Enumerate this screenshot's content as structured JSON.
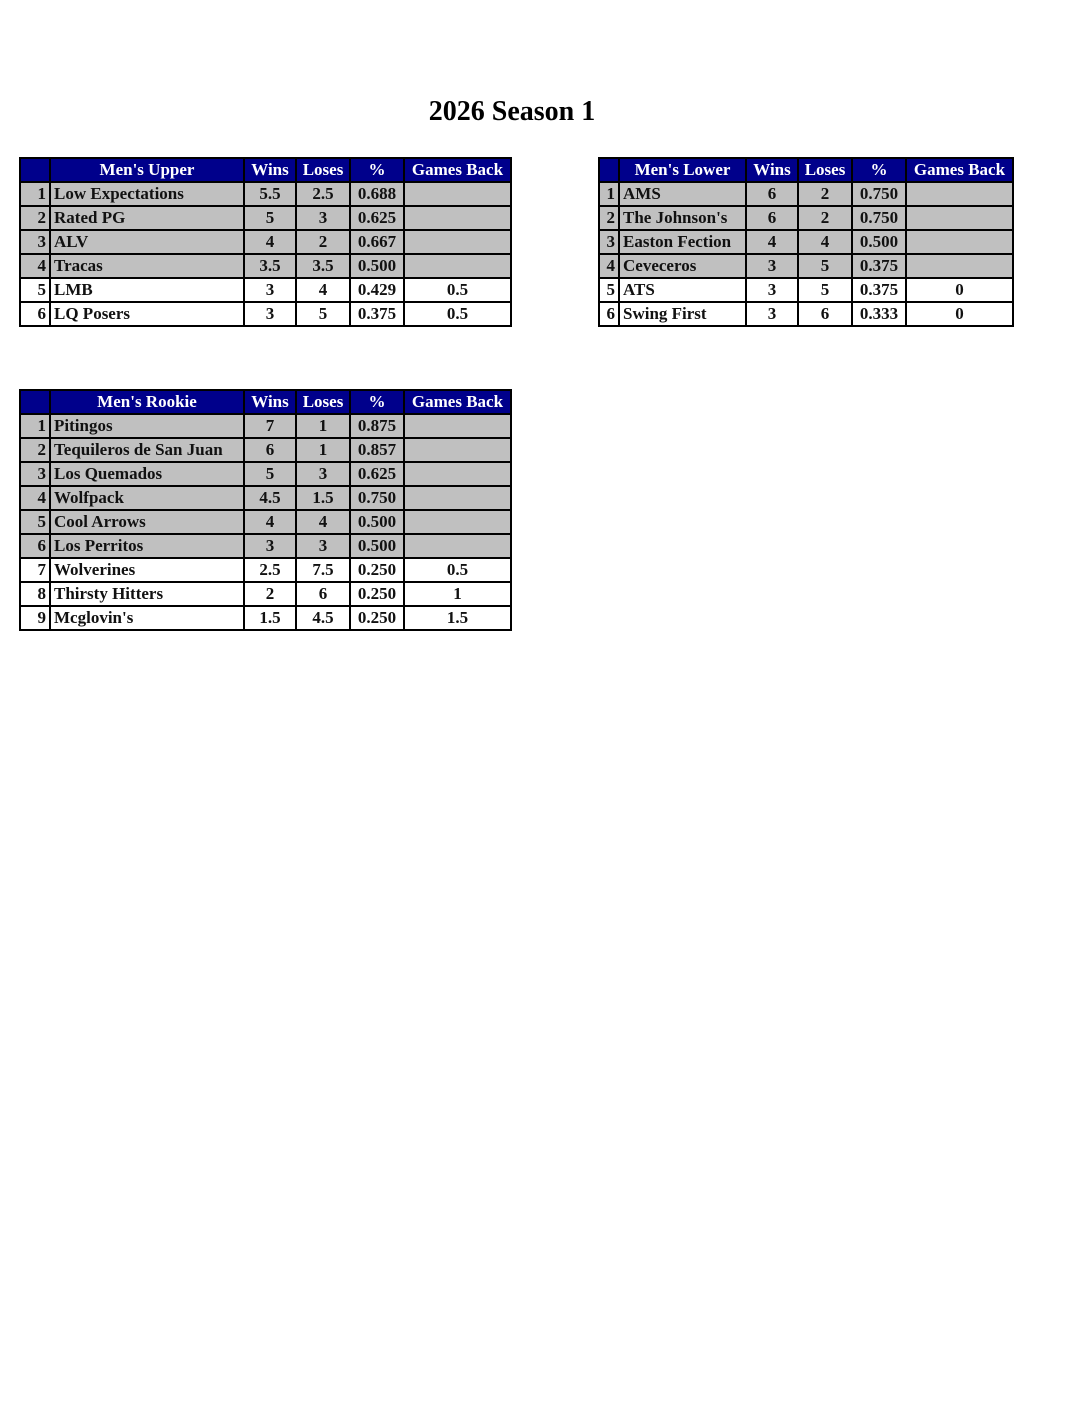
{
  "title": "2026 Season 1",
  "columns": [
    "Wins",
    "Loses",
    "%",
    "Games Back"
  ],
  "colors": {
    "header_bg": "#00008b",
    "header_text": "#ffffff",
    "highlight_row": "#c0c0c0"
  },
  "tables": [
    {
      "id": "upper",
      "division": "Men's Upper",
      "rows": [
        {
          "rank": "1",
          "team": "Low Expectations",
          "wins": "5.5",
          "loses": "2.5",
          "pct": "0.688",
          "gb": "",
          "highlighted": true
        },
        {
          "rank": "2",
          "team": "Rated PG",
          "wins": "5",
          "loses": "3",
          "pct": "0.625",
          "gb": "",
          "highlighted": true
        },
        {
          "rank": "3",
          "team": "ALV",
          "wins": "4",
          "loses": "2",
          "pct": "0.667",
          "gb": "",
          "highlighted": true
        },
        {
          "rank": "4",
          "team": "Tracas",
          "wins": "3.5",
          "loses": "3.5",
          "pct": "0.500",
          "gb": "",
          "highlighted": true
        },
        {
          "rank": "5",
          "team": "LMB",
          "wins": "3",
          "loses": "4",
          "pct": "0.429",
          "gb": "0.5",
          "highlighted": false
        },
        {
          "rank": "6",
          "team": "LQ Posers",
          "wins": "3",
          "loses": "5",
          "pct": "0.375",
          "gb": "0.5",
          "highlighted": false
        }
      ]
    },
    {
      "id": "lower",
      "division": "Men's Lower",
      "rows": [
        {
          "rank": "1",
          "team": "AMS",
          "wins": "6",
          "loses": "2",
          "pct": "0.750",
          "gb": "",
          "highlighted": true
        },
        {
          "rank": "2",
          "team": "The Johnson's",
          "wins": "6",
          "loses": "2",
          "pct": "0.750",
          "gb": "",
          "highlighted": true
        },
        {
          "rank": "3",
          "team": "Easton Fection",
          "wins": "4",
          "loses": "4",
          "pct": "0.500",
          "gb": "",
          "highlighted": true
        },
        {
          "rank": "4",
          "team": "Ceveceros",
          "wins": "3",
          "loses": "5",
          "pct": "0.375",
          "gb": "",
          "highlighted": true
        },
        {
          "rank": "5",
          "team": "ATS",
          "wins": "3",
          "loses": "5",
          "pct": "0.375",
          "gb": "0",
          "highlighted": false
        },
        {
          "rank": "6",
          "team": "Swing First",
          "wins": "3",
          "loses": "6",
          "pct": "0.333",
          "gb": "0",
          "highlighted": false
        }
      ]
    },
    {
      "id": "rookie",
      "division": "Men's Rookie",
      "rows": [
        {
          "rank": "1",
          "team": "Pitingos",
          "wins": "7",
          "loses": "1",
          "pct": "0.875",
          "gb": "",
          "highlighted": true
        },
        {
          "rank": "2",
          "team": "Tequileros de San Juan",
          "wins": "6",
          "loses": "1",
          "pct": "0.857",
          "gb": "",
          "highlighted": true
        },
        {
          "rank": "3",
          "team": "Los Quemados",
          "wins": "5",
          "loses": "3",
          "pct": "0.625",
          "gb": "",
          "highlighted": true
        },
        {
          "rank": "4",
          "team": "Wolfpack",
          "wins": "4.5",
          "loses": "1.5",
          "pct": "0.750",
          "gb": "",
          "highlighted": true
        },
        {
          "rank": "5",
          "team": "Cool Arrows",
          "wins": "4",
          "loses": "4",
          "pct": "0.500",
          "gb": "",
          "highlighted": true
        },
        {
          "rank": "6",
          "team": "Los Perritos",
          "wins": "3",
          "loses": "3",
          "pct": "0.500",
          "gb": "",
          "highlighted": true
        },
        {
          "rank": "7",
          "team": "Wolverines",
          "wins": "2.5",
          "loses": "7.5",
          "pct": "0.250",
          "gb": "0.5",
          "highlighted": false
        },
        {
          "rank": "8",
          "team": "Thirsty Hitters",
          "wins": "2",
          "loses": "6",
          "pct": "0.250",
          "gb": "1",
          "highlighted": false
        },
        {
          "rank": "9",
          "team": "Mcglovin's",
          "wins": "1.5",
          "loses": "4.5",
          "pct": "0.250",
          "gb": "1.5",
          "highlighted": false
        }
      ]
    }
  ]
}
